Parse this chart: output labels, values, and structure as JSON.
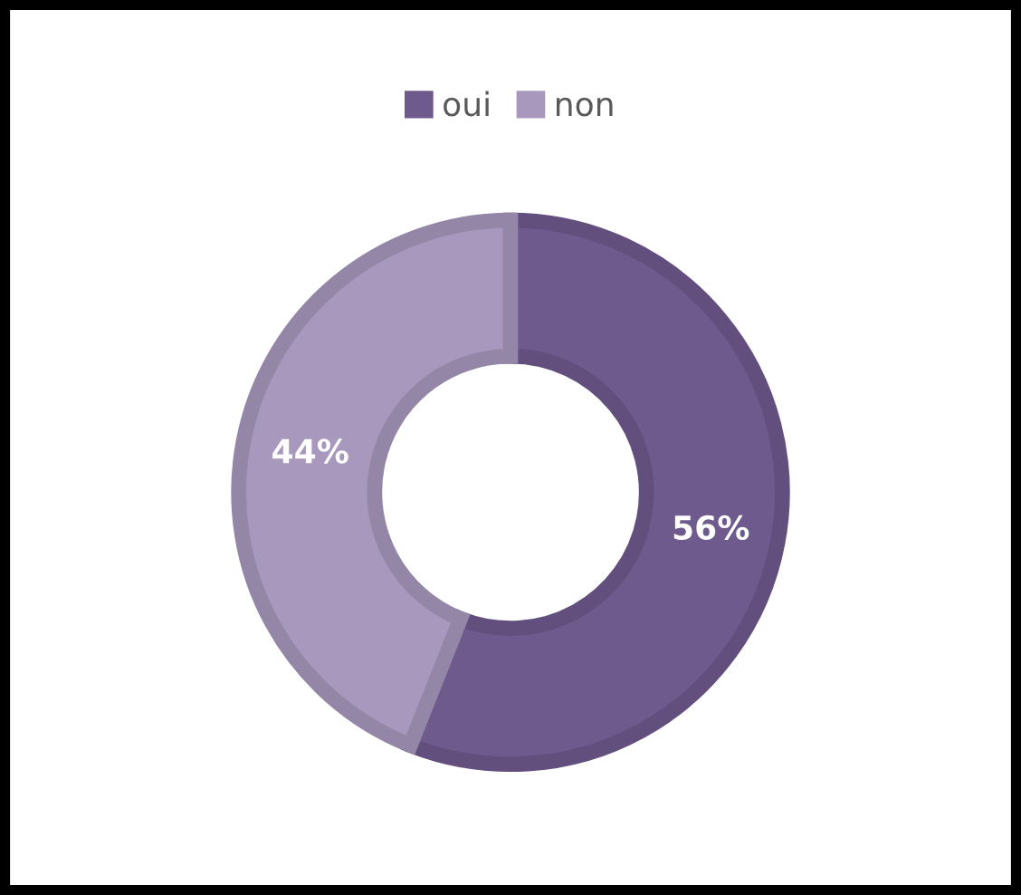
{
  "chart_data": {
    "type": "donut",
    "categories": [
      "oui",
      "non"
    ],
    "values": [
      56,
      44
    ],
    "colors": [
      "#6f5a8e",
      "#a898bd"
    ],
    "value_labels": [
      "56%",
      "44%"
    ],
    "legend": "top"
  }
}
